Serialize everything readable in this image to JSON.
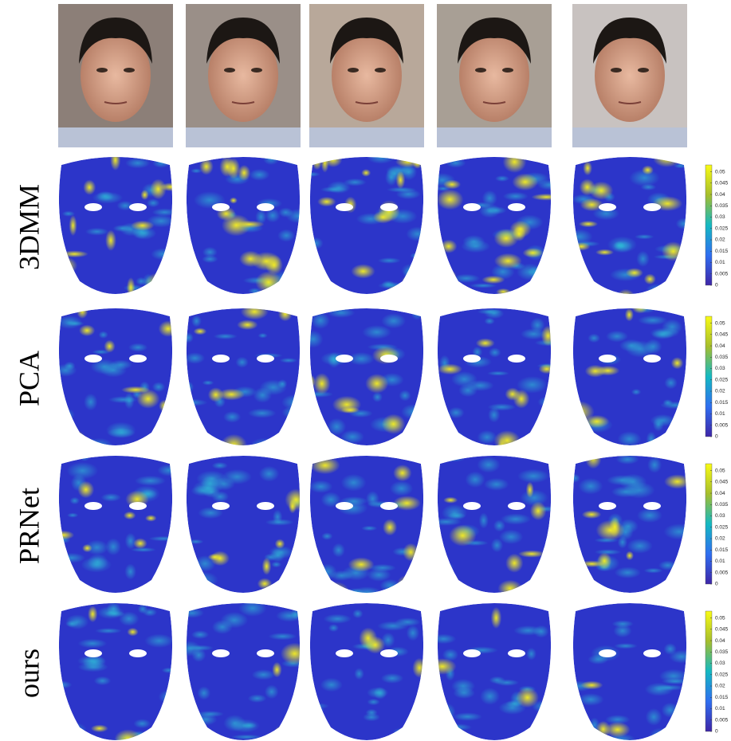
{
  "rows": [
    {
      "label": "3DMM"
    },
    {
      "label": "PCA"
    },
    {
      "label": "PRNet"
    },
    {
      "label": "ours"
    }
  ],
  "colorbar": {
    "lim": [
      0,
      0.053
    ],
    "ticks": [
      0,
      0.005,
      0.01,
      0.015,
      0.02,
      0.025,
      0.03,
      0.035,
      0.04,
      0.045,
      0.05
    ]
  }
}
